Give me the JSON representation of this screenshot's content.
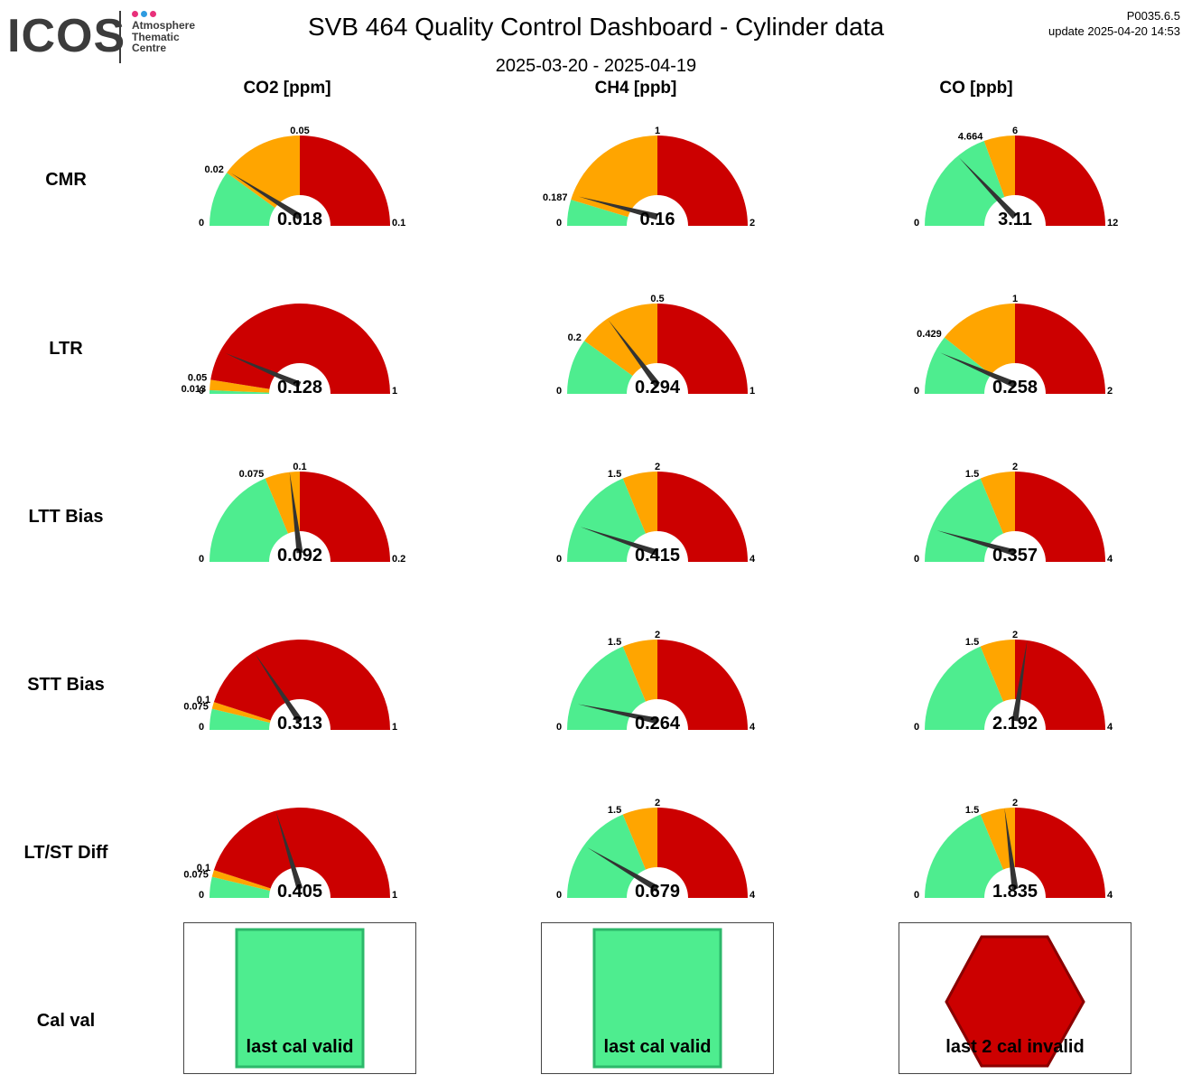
{
  "header": {
    "logo_word": "ICOS",
    "logo_sub": [
      "Atmosphere",
      "Thematic",
      "Centre"
    ],
    "logo_dot_colors": [
      "#e8307a",
      "#2e9be0",
      "#e8307a"
    ],
    "title": "SVB 464 Quality Control Dashboard - Cylinder data",
    "date_range": "2025-03-20 - 2025-04-19",
    "version": "P0035.6.5",
    "update": "update  2025-04-20 14:53"
  },
  "colors": {
    "green": "#4eed8f",
    "orange": "#ffa500",
    "red": "#cc0000",
    "needle": "#333333"
  },
  "columns": [
    "CO2 [ppm]",
    "CH4 [ppb]",
    "CO [ppb]"
  ],
  "rows": [
    "CMR",
    "LTR",
    "LTT Bias",
    "STT Bias",
    "LT/ST Diff",
    "Cal val"
  ],
  "gauges": [
    [
      {
        "min": "0",
        "max": "0.1",
        "t1": "0.02",
        "t2": "0.05",
        "value": "0.018",
        "v": 0.018,
        "vmin": 0,
        "vmax": 0.1,
        "warn": 0.02,
        "crit": 0.05,
        "zones": [
          "green",
          "orange",
          "red"
        ]
      },
      {
        "min": "0",
        "max": "2",
        "t1": "0.187",
        "t2": "1",
        "value": "0.16",
        "v": 0.16,
        "vmin": 0,
        "vmax": 2,
        "warn": 0.187,
        "crit": 1,
        "zones": [
          "green",
          "orange",
          "red"
        ]
      },
      {
        "min": "0",
        "max": "12",
        "t1": "4.664",
        "t2": "6",
        "value": "3.11",
        "v": 3.11,
        "vmin": 0,
        "vmax": 12,
        "warn": 4.664,
        "crit": 6,
        "zones": [
          "green",
          "orange",
          "red"
        ]
      }
    ],
    [
      {
        "min": "0",
        "max": "1",
        "t1": "0.013",
        "t2": "0.05",
        "value": "0.128",
        "v": 0.128,
        "vmin": 0,
        "vmax": 1,
        "warn": 0.013,
        "crit": 0.05,
        "zones": [
          "green",
          "orange",
          "red"
        ]
      },
      {
        "min": "0",
        "max": "1",
        "t1": "0.2",
        "t2": "0.5",
        "value": "0.294",
        "v": 0.294,
        "vmin": 0,
        "vmax": 1,
        "warn": 0.2,
        "crit": 0.5,
        "zones": [
          "green",
          "orange",
          "red"
        ]
      },
      {
        "min": "0",
        "max": "2",
        "t1": "0.429",
        "t2": "1",
        "value": "0.258",
        "v": 0.258,
        "vmin": 0,
        "vmax": 2,
        "warn": 0.429,
        "crit": 1,
        "zones": [
          "green",
          "orange",
          "red"
        ]
      }
    ],
    [
      {
        "min": "0",
        "max": "0.2",
        "t1": "0.075",
        "t2": "0.1",
        "value": "0.092",
        "v": 0.092,
        "vmin": 0,
        "vmax": 0.2,
        "warn": 0.075,
        "crit": 0.1,
        "zones": [
          "green",
          "orange",
          "red"
        ]
      },
      {
        "min": "0",
        "max": "4",
        "t1": "1.5",
        "t2": "2",
        "value": "0.415",
        "v": 0.415,
        "vmin": 0,
        "vmax": 4,
        "warn": 1.5,
        "crit": 2,
        "zones": [
          "green",
          "orange",
          "red"
        ]
      },
      {
        "min": "0",
        "max": "4",
        "t1": "1.5",
        "t2": "2",
        "value": "0.357",
        "v": 0.357,
        "vmin": 0,
        "vmax": 4,
        "warn": 1.5,
        "crit": 2,
        "zones": [
          "green",
          "orange",
          "red"
        ]
      }
    ],
    [
      {
        "min": "0",
        "max": "1",
        "t1": "0.075",
        "t2": "0.1",
        "value": "0.313",
        "v": 0.313,
        "vmin": 0,
        "vmax": 1,
        "warn": 0.075,
        "crit": 0.1,
        "zones": [
          "green",
          "orange",
          "red"
        ]
      },
      {
        "min": "0",
        "max": "4",
        "t1": "1.5",
        "t2": "2",
        "value": "0.264",
        "v": 0.264,
        "vmin": 0,
        "vmax": 4,
        "warn": 1.5,
        "crit": 2,
        "zones": [
          "green",
          "orange",
          "red"
        ]
      },
      {
        "min": "0",
        "max": "4",
        "t1": "1.5",
        "t2": "2",
        "value": "2.192",
        "v": 2.192,
        "vmin": 0,
        "vmax": 4,
        "warn": 1.5,
        "crit": 2,
        "zones": [
          "green",
          "orange",
          "red"
        ]
      }
    ],
    [
      {
        "min": "0",
        "max": "1",
        "t1": "0.075",
        "t2": "0.1",
        "value": "0.405",
        "v": 0.405,
        "vmin": 0,
        "vmax": 1,
        "warn": 0.075,
        "crit": 0.1,
        "zones": [
          "green",
          "orange",
          "red"
        ]
      },
      {
        "min": "0",
        "max": "4",
        "t1": "1.5",
        "t2": "2",
        "value": "0.679",
        "v": 0.679,
        "vmin": 0,
        "vmax": 4,
        "warn": 1.5,
        "crit": 2,
        "zones": [
          "green",
          "orange",
          "red"
        ]
      },
      {
        "min": "0",
        "max": "4",
        "t1": "1.5",
        "t2": "2",
        "value": "1.835",
        "v": 1.835,
        "vmin": 0,
        "vmax": 4,
        "warn": 1.5,
        "crit": 2,
        "zones": [
          "green",
          "orange",
          "red"
        ]
      }
    ]
  ],
  "cal_val": [
    {
      "label": "last cal valid",
      "status": "valid",
      "shape": "square",
      "color": "#4eed8f"
    },
    {
      "label": "last cal valid",
      "status": "valid",
      "shape": "square",
      "color": "#4eed8f"
    },
    {
      "label": "last 2 cal invalid",
      "status": "invalid",
      "shape": "hexagon",
      "color": "#cc0000"
    }
  ]
}
